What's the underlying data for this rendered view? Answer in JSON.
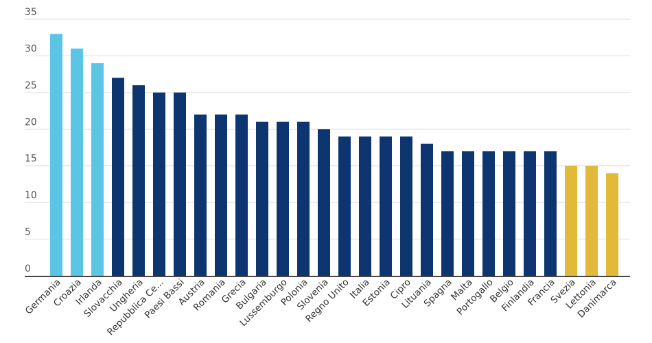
{
  "chart_data": {
    "type": "bar",
    "title": "",
    "xlabel": "",
    "ylabel": "",
    "ylim": [
      0,
      35
    ],
    "yticks": [
      0,
      5,
      10,
      15,
      20,
      25,
      30,
      35
    ],
    "grid": true,
    "categories": [
      "Germania",
      "Croazia",
      "Irlanda",
      "Slovacchia",
      "Ungheria",
      "Repubblica Ce...",
      "Paesi Bassi",
      "Austria",
      "Romania",
      "Grecia",
      "Bulgaria",
      "Lussemburgo",
      "Polonia",
      "Slovenia",
      "Regno Unito",
      "Italia",
      "Estonia",
      "Cipro",
      "Lituania",
      "Spagna",
      "Malta",
      "Portogallo",
      "Belgio",
      "Finlandia",
      "Francia",
      "Svezia",
      "Lettonia",
      "Danimarca"
    ],
    "values": [
      33,
      31,
      29,
      27,
      26,
      25,
      25,
      22,
      22,
      22,
      21,
      21,
      21,
      20,
      19,
      19,
      19,
      19,
      18,
      17,
      17,
      17,
      17,
      17,
      17,
      15,
      15,
      14
    ],
    "bar_colors": [
      "#5bc5e6",
      "#5bc5e6",
      "#5bc5e6",
      "#0d3670",
      "#0d3670",
      "#0d3670",
      "#0d3670",
      "#0d3670",
      "#0d3670",
      "#0d3670",
      "#0d3670",
      "#0d3670",
      "#0d3670",
      "#0d3670",
      "#0d3670",
      "#0d3670",
      "#0d3670",
      "#0d3670",
      "#0d3670",
      "#0d3670",
      "#0d3670",
      "#0d3670",
      "#0d3670",
      "#0d3670",
      "#0d3670",
      "#e3b93a",
      "#e3b93a",
      "#e3b93a"
    ],
    "colors": {
      "grid": "#dddddd",
      "axis": "#444444"
    }
  }
}
